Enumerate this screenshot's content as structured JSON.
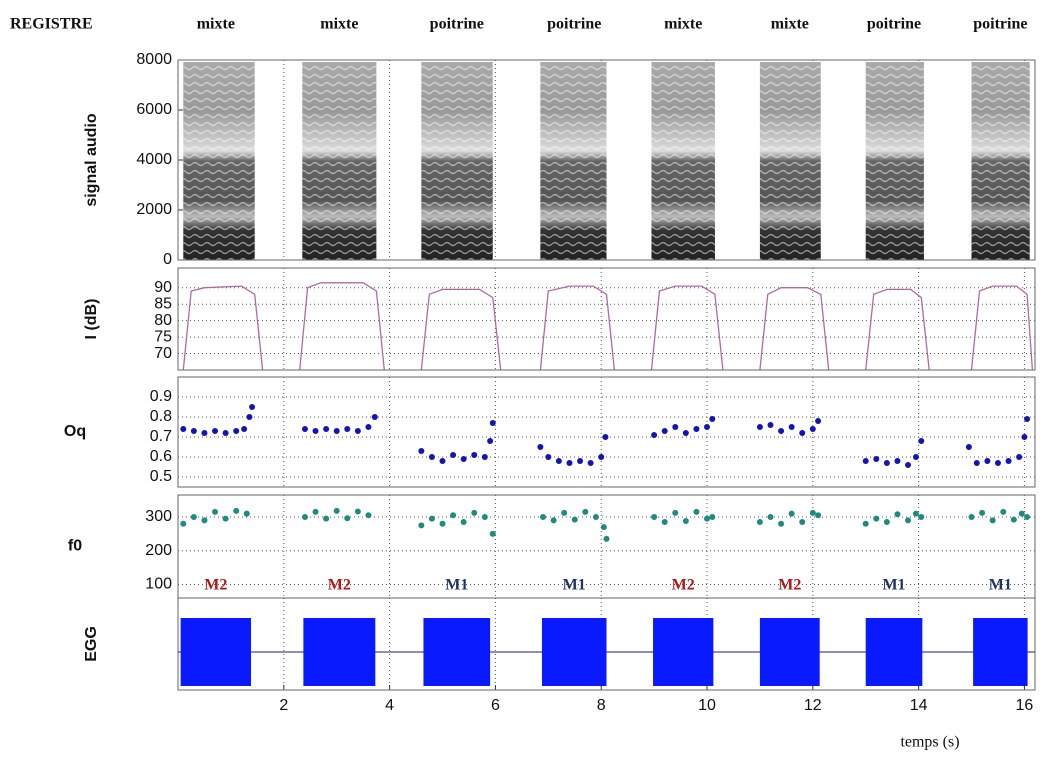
{
  "registre_title": "REGISTRE",
  "registres": [
    "mixte",
    "mixte",
    "poitrine",
    "poitrine",
    "mixte",
    "mixte",
    "poitrine",
    "poitrine"
  ],
  "mecanismes": [
    "M2",
    "M2",
    "M1",
    "M1",
    "M2",
    "M2",
    "M1",
    "M1"
  ],
  "chart_data": [
    {
      "type": "spectrogram",
      "ylabel": "signal audio",
      "xlim": [
        0,
        16.2
      ],
      "ylim": [
        0,
        8000
      ],
      "yticks": [
        0,
        2000,
        4000,
        6000,
        8000
      ],
      "segments": [
        [
          0.1,
          1.45
        ],
        [
          2.35,
          3.75
        ],
        [
          4.6,
          5.95
        ],
        [
          6.85,
          8.1
        ],
        [
          8.95,
          10.15
        ],
        [
          11.0,
          12.15
        ],
        [
          13.0,
          14.1
        ],
        [
          15.0,
          16.1
        ]
      ]
    },
    {
      "type": "line",
      "ylabel": "I (dB)",
      "xlim": [
        0,
        16.2
      ],
      "ylim": [
        65,
        96
      ],
      "yticks": [
        70,
        75,
        80,
        85,
        90
      ],
      "grid": true,
      "color": "#b06aa0",
      "x": [
        0.1,
        0.25,
        0.5,
        1.2,
        1.45,
        1.6,
        2.0,
        2.3,
        2.45,
        2.7,
        3.5,
        3.75,
        3.9,
        4.3,
        4.6,
        4.75,
        5.0,
        5.7,
        5.95,
        6.1,
        6.5,
        6.85,
        7.0,
        7.4,
        7.85,
        8.1,
        8.25,
        8.6,
        8.95,
        9.1,
        9.4,
        9.9,
        10.15,
        10.3,
        10.6,
        11.0,
        11.15,
        11.4,
        11.9,
        12.15,
        12.3,
        12.6,
        13.0,
        13.15,
        13.4,
        13.85,
        14.05,
        14.2,
        14.6,
        15.0,
        15.15,
        15.4,
        15.85,
        16.05,
        16.15
      ],
      "values": [
        65,
        89,
        90,
        90.5,
        88,
        65,
        null,
        65,
        90,
        91.5,
        91.5,
        89,
        65,
        null,
        65,
        88,
        89.5,
        89.5,
        87,
        65,
        null,
        65,
        89,
        90.5,
        90.5,
        88,
        65,
        null,
        65,
        89,
        90.5,
        90.5,
        88,
        65,
        null,
        65,
        88,
        90,
        90,
        88,
        65,
        null,
        65,
        88,
        89.5,
        89.5,
        87,
        65,
        null,
        65,
        89,
        90.5,
        90.5,
        88,
        65
      ]
    },
    {
      "type": "scatter",
      "ylabel": "Oq",
      "xlim": [
        0,
        16.2
      ],
      "ylim": [
        0.45,
        1.0
      ],
      "yticks": [
        0.5,
        0.6,
        0.7,
        0.8,
        0.9
      ],
      "grid": true,
      "color": "#1414b4",
      "x": [
        0.1,
        0.3,
        0.5,
        0.7,
        0.9,
        1.1,
        1.25,
        1.35,
        1.4,
        2.4,
        2.6,
        2.8,
        3.0,
        3.2,
        3.4,
        3.6,
        3.72,
        4.6,
        4.8,
        5.0,
        5.2,
        5.4,
        5.6,
        5.8,
        5.9,
        5.95,
        6.85,
        7.0,
        7.2,
        7.4,
        7.6,
        7.8,
        8.0,
        8.08,
        9.0,
        9.2,
        9.4,
        9.6,
        9.8,
        10.0,
        10.1,
        11.0,
        11.2,
        11.4,
        11.6,
        11.8,
        12.0,
        12.1,
        13.0,
        13.2,
        13.4,
        13.6,
        13.8,
        13.95,
        14.05,
        14.95,
        15.1,
        15.3,
        15.5,
        15.7,
        15.9,
        16.0,
        16.05
      ],
      "values": [
        0.74,
        0.73,
        0.72,
        0.73,
        0.72,
        0.73,
        0.74,
        0.8,
        0.85,
        0.74,
        0.73,
        0.74,
        0.73,
        0.74,
        0.73,
        0.75,
        0.8,
        0.63,
        0.6,
        0.58,
        0.61,
        0.59,
        0.61,
        0.6,
        0.68,
        0.77,
        0.65,
        0.6,
        0.58,
        0.57,
        0.58,
        0.57,
        0.6,
        0.7,
        0.71,
        0.73,
        0.75,
        0.72,
        0.74,
        0.75,
        0.79,
        0.75,
        0.76,
        0.73,
        0.75,
        0.72,
        0.74,
        0.78,
        0.58,
        0.59,
        0.57,
        0.58,
        0.56,
        0.6,
        0.68,
        0.65,
        0.57,
        0.58,
        0.57,
        0.58,
        0.6,
        0.7,
        0.79
      ]
    },
    {
      "type": "scatter",
      "ylabel": "f0",
      "xlim": [
        0,
        16.2
      ],
      "ylim": [
        60,
        365
      ],
      "yticks": [
        100,
        200,
        300
      ],
      "grid": true,
      "color": "#1f8a80",
      "x": [
        0.1,
        0.3,
        0.5,
        0.7,
        0.9,
        1.1,
        1.3,
        2.4,
        2.6,
        2.8,
        3.0,
        3.2,
        3.4,
        3.6,
        4.6,
        4.8,
        5.0,
        5.2,
        5.4,
        5.6,
        5.8,
        5.95,
        6.9,
        7.1,
        7.3,
        7.5,
        7.7,
        7.9,
        8.05,
        8.1,
        9.0,
        9.2,
        9.4,
        9.6,
        9.8,
        10.0,
        10.1,
        11.0,
        11.2,
        11.4,
        11.6,
        11.8,
        12.0,
        12.1,
        13.0,
        13.2,
        13.4,
        13.6,
        13.8,
        13.95,
        14.05,
        15.0,
        15.2,
        15.4,
        15.6,
        15.8,
        15.95,
        16.05
      ],
      "values": [
        280,
        300,
        290,
        315,
        295,
        318,
        310,
        300,
        315,
        295,
        318,
        296,
        316,
        305,
        275,
        295,
        280,
        305,
        285,
        312,
        300,
        250,
        300,
        290,
        312,
        292,
        315,
        300,
        270,
        235,
        300,
        285,
        312,
        288,
        315,
        295,
        300,
        285,
        300,
        280,
        310,
        285,
        312,
        305,
        280,
        295,
        285,
        308,
        290,
        310,
        300,
        300,
        312,
        290,
        315,
        292,
        310,
        300
      ]
    },
    {
      "type": "segments",
      "ylabel": "EGG",
      "xlabel": "temps (s)",
      "xlim": [
        0,
        16.2
      ],
      "xticks": [
        2,
        4,
        6,
        8,
        10,
        12,
        14,
        16
      ],
      "color": "#0a1aff",
      "segments": [
        [
          0.05,
          1.38
        ],
        [
          2.37,
          3.73
        ],
        [
          4.64,
          5.9
        ],
        [
          6.88,
          8.1
        ],
        [
          8.98,
          10.12
        ],
        [
          11.0,
          12.13
        ],
        [
          13.0,
          14.07
        ],
        [
          15.03,
          16.06
        ]
      ]
    }
  ]
}
